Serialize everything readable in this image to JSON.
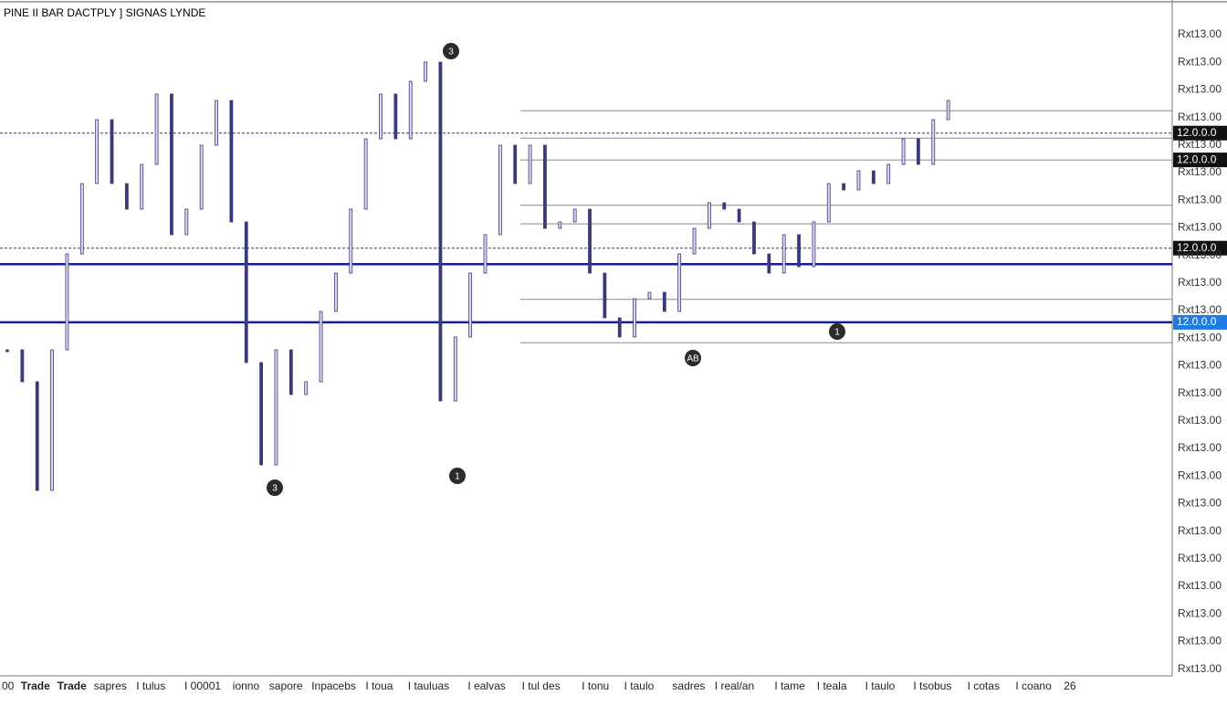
{
  "header": {
    "title": "PINE II BAR DACTPLY ] SIGNAS LYNDE"
  },
  "chart": {
    "ylim": [
      0,
      100
    ],
    "close": [
      51,
      46,
      29,
      51,
      66,
      77,
      87,
      77,
      73,
      80,
      91,
      69,
      73,
      83,
      90,
      71,
      49,
      33,
      51,
      44,
      46,
      57,
      63,
      73,
      84,
      91,
      84,
      93,
      96,
      43,
      53,
      63,
      69,
      83,
      77,
      83,
      70,
      71,
      73,
      63,
      56,
      53,
      59,
      60,
      57,
      66,
      70,
      74,
      73,
      71,
      66,
      63,
      69,
      64,
      71,
      77,
      76,
      79,
      77,
      80,
      84,
      80,
      87,
      90
    ],
    "levels": [
      {
        "value": 84.9,
        "style": "dashed",
        "label": "12.0.0.0"
      },
      {
        "value": 80.7,
        "style": "gray",
        "label": "12.0.0.0"
      },
      {
        "value": 66.9,
        "style": "dashed",
        "label": "12.0.0.0"
      },
      {
        "value": 64.4,
        "style": "blue"
      },
      {
        "value": 55.3,
        "style": "blue",
        "label": "12.0.0.0"
      },
      {
        "value": 88.4,
        "style": "gray"
      },
      {
        "value": 84.1,
        "style": "gray"
      },
      {
        "value": 73.6,
        "style": "gray"
      },
      {
        "value": 70.7,
        "style": "gray"
      },
      {
        "value": 58.9,
        "style": "gray"
      },
      {
        "value": 52.1,
        "style": "gray"
      }
    ]
  },
  "markers": [
    "3",
    "3",
    "1",
    "AB",
    "1"
  ],
  "price_axis": {
    "labels": [
      "Rxt13.00",
      "Rxt13.00",
      "Rxt13.00",
      "Rxt13.00",
      "Rxt13.00",
      "Rxt13.00",
      "Rxt13.00",
      "Rxt13.00",
      "Rxt13.00",
      "Rxt13.00",
      "Rxt13.00",
      "Rxt13.00",
      "Rxt13.00",
      "Rxt13.00",
      "Rxt13.00",
      "Rxt13.00",
      "Rxt13.00",
      "Rxt13.00",
      "Rxt13.00",
      "Rxt13.00",
      "Rxt13.00",
      "Rxt13.00",
      "Rxt13.00",
      "Rxt13.00"
    ]
  },
  "tabs": [
    "00",
    "Trade",
    "Trade",
    "sapres",
    "I tulus",
    "I 00001",
    "ionno",
    "sapore",
    "Inpacebs",
    "I toua",
    "I tauluas",
    "I ealvas",
    "I tul des",
    "I tonu",
    "I taulo",
    "sadres",
    "I real/an",
    "I tame",
    "I teala",
    "I taulo",
    "I tsobus",
    "I cotas",
    "I coano",
    "26"
  ]
}
